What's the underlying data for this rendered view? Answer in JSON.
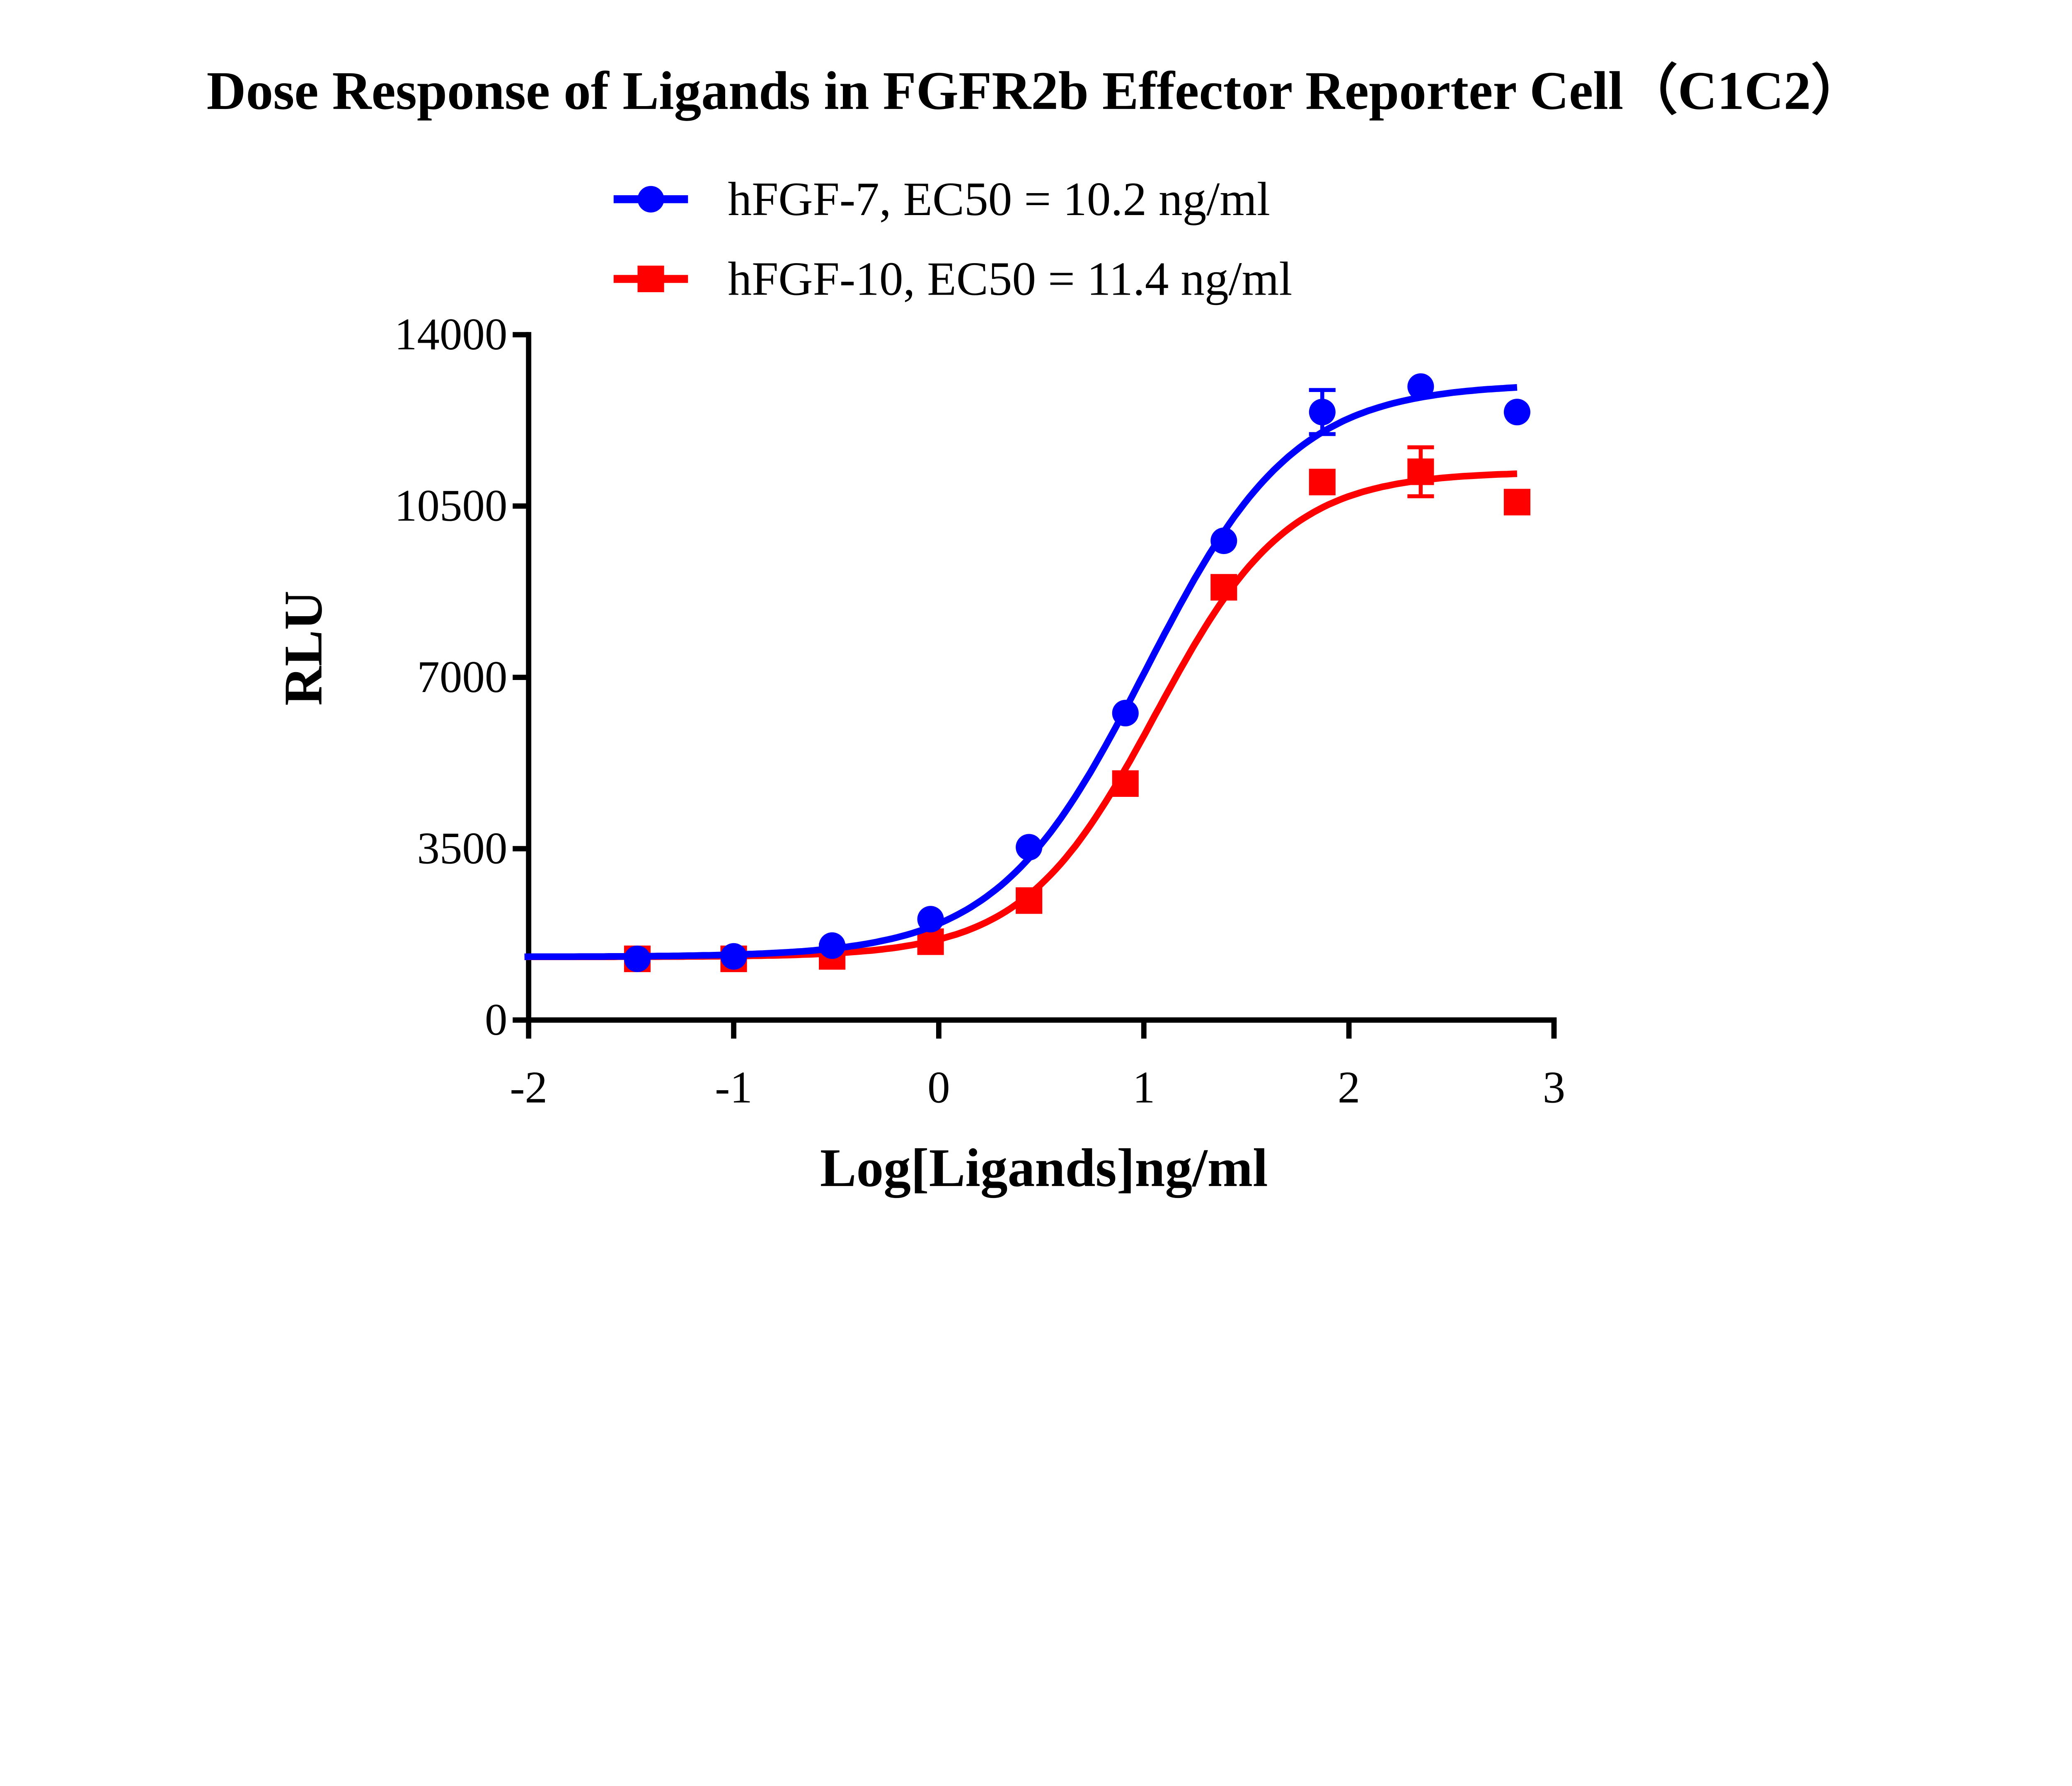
{
  "chart_data": {
    "type": "scatter",
    "title": "Dose Response of Ligands in FGFR2b Effector Reporter Cell（C1C2）",
    "xlabel": "Log[Ligands]ng/ml",
    "ylabel": "RLU",
    "xlim": [
      -2,
      3
    ],
    "ylim": [
      0,
      14000
    ],
    "xticks": [
      "-2",
      "-1",
      "0",
      "1",
      "2",
      "3"
    ],
    "yticks": [
      "0",
      "3500",
      "7000",
      "10500",
      "14000"
    ],
    "grid": false,
    "legend_position": "top-center",
    "series": [
      {
        "name": "hFGF-7, EC50 = 10.2 ng/ml",
        "color": "#0000ff",
        "marker": "circle",
        "x": [
          -1.47,
          -1.0,
          -0.52,
          -0.04,
          0.44,
          0.91,
          1.39,
          1.87,
          2.35,
          2.82
        ],
        "y": [
          1250,
          1300,
          1520,
          2060,
          3530,
          6270,
          9790,
          12420,
          12940,
          12420
        ],
        "error": [
          0,
          0,
          0,
          0,
          0,
          0,
          0,
          450,
          0,
          0
        ],
        "fit": {
          "model": "4PL",
          "bottom": 1290,
          "top": 13000,
          "log_ec50": 1.0086,
          "hill": 1.2
        }
      },
      {
        "name": "hFGF-10, EC50 = 11.4 ng/ml",
        "color": "#ff0000",
        "marker": "square",
        "x": [
          -1.47,
          -1.0,
          -0.52,
          -0.04,
          0.44,
          0.91,
          1.39,
          1.87,
          2.35,
          2.82
        ],
        "y": [
          1250,
          1250,
          1300,
          1600,
          2440,
          4830,
          8840,
          10990,
          11200,
          10580
        ],
        "error": [
          0,
          0,
          0,
          0,
          0,
          0,
          0,
          0,
          500,
          0
        ],
        "fit": {
          "model": "4PL",
          "bottom": 1290,
          "top": 11200,
          "log_ec50": 1.057,
          "hill": 1.35
        }
      }
    ]
  }
}
